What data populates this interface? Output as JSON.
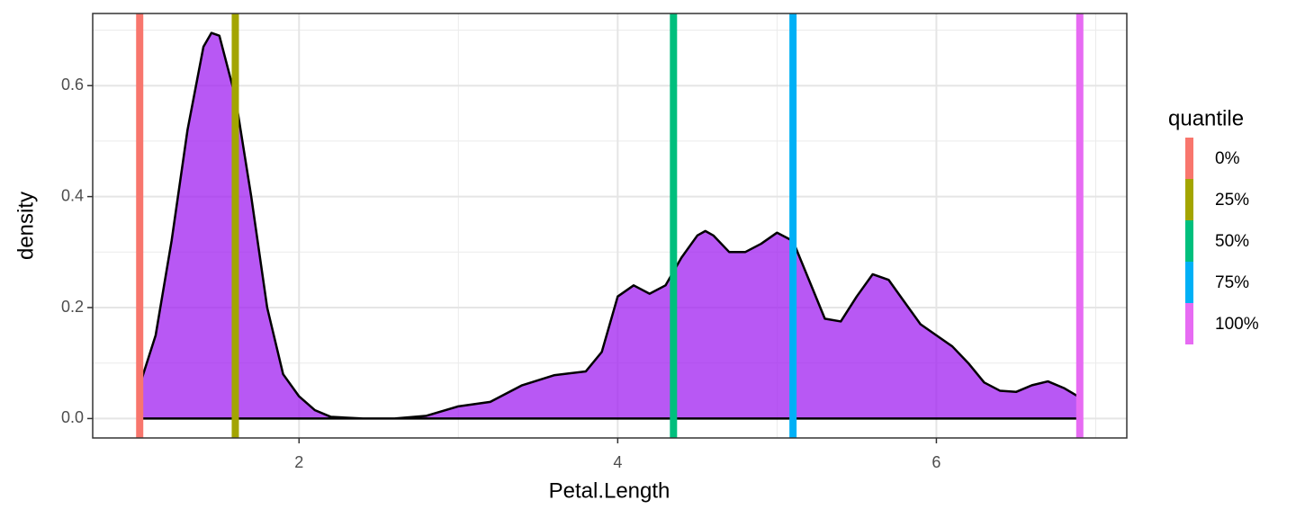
{
  "chart_data": {
    "type": "density",
    "x_label": "Petal.Length",
    "y_label": "density",
    "x": [
      1.0,
      1.1,
      1.2,
      1.3,
      1.4,
      1.45,
      1.5,
      1.6,
      1.7,
      1.8,
      1.9,
      2.0,
      2.1,
      2.2,
      2.4,
      2.6,
      2.8,
      3.0,
      3.2,
      3.4,
      3.6,
      3.8,
      3.9,
      4.0,
      4.1,
      4.2,
      4.3,
      4.4,
      4.5,
      4.55,
      4.6,
      4.7,
      4.8,
      4.9,
      5.0,
      5.1,
      5.2,
      5.3,
      5.4,
      5.5,
      5.6,
      5.7,
      5.8,
      5.9,
      6.0,
      6.1,
      6.2,
      6.3,
      6.4,
      6.5,
      6.6,
      6.7,
      6.8,
      6.9
    ],
    "values": [
      0.06,
      0.15,
      0.32,
      0.52,
      0.67,
      0.695,
      0.69,
      0.58,
      0.4,
      0.2,
      0.08,
      0.04,
      0.015,
      0.003,
      0,
      0,
      0.005,
      0.022,
      0.03,
      0.06,
      0.078,
      0.085,
      0.12,
      0.22,
      0.24,
      0.225,
      0.24,
      0.29,
      0.33,
      0.338,
      0.33,
      0.3,
      0.3,
      0.315,
      0.335,
      0.32,
      0.25,
      0.18,
      0.175,
      0.22,
      0.26,
      0.25,
      0.21,
      0.17,
      0.15,
      0.13,
      0.1,
      0.065,
      0.05,
      0.048,
      0.06,
      0.067,
      0.055,
      0.038
    ],
    "color": "#a020f0",
    "quantiles": {
      "title": "quantile",
      "labels": [
        "0%",
        "25%",
        "50%",
        "75%",
        "100%"
      ],
      "values": [
        1.0,
        1.6,
        4.35,
        5.1,
        6.9
      ],
      "colors": [
        "#f8766d",
        "#a3a500",
        "#00bf7d",
        "#00b0f6",
        "#e76bf3"
      ]
    },
    "xlim": [
      0.705,
      7.195
    ],
    "ylim": [
      -0.035,
      0.73
    ],
    "xticks": [
      2,
      4,
      6
    ],
    "yticks": [
      {
        "value": 0,
        "label": "0.0"
      },
      {
        "value": 0.2,
        "label": "0.2"
      },
      {
        "value": 0.4,
        "label": "0.4"
      },
      {
        "value": 0.6,
        "label": "0.6"
      }
    ],
    "xminor": [
      1,
      3,
      5,
      7
    ],
    "yminor": [
      0.1,
      0.3,
      0.5,
      0.7
    ],
    "grid": true
  }
}
